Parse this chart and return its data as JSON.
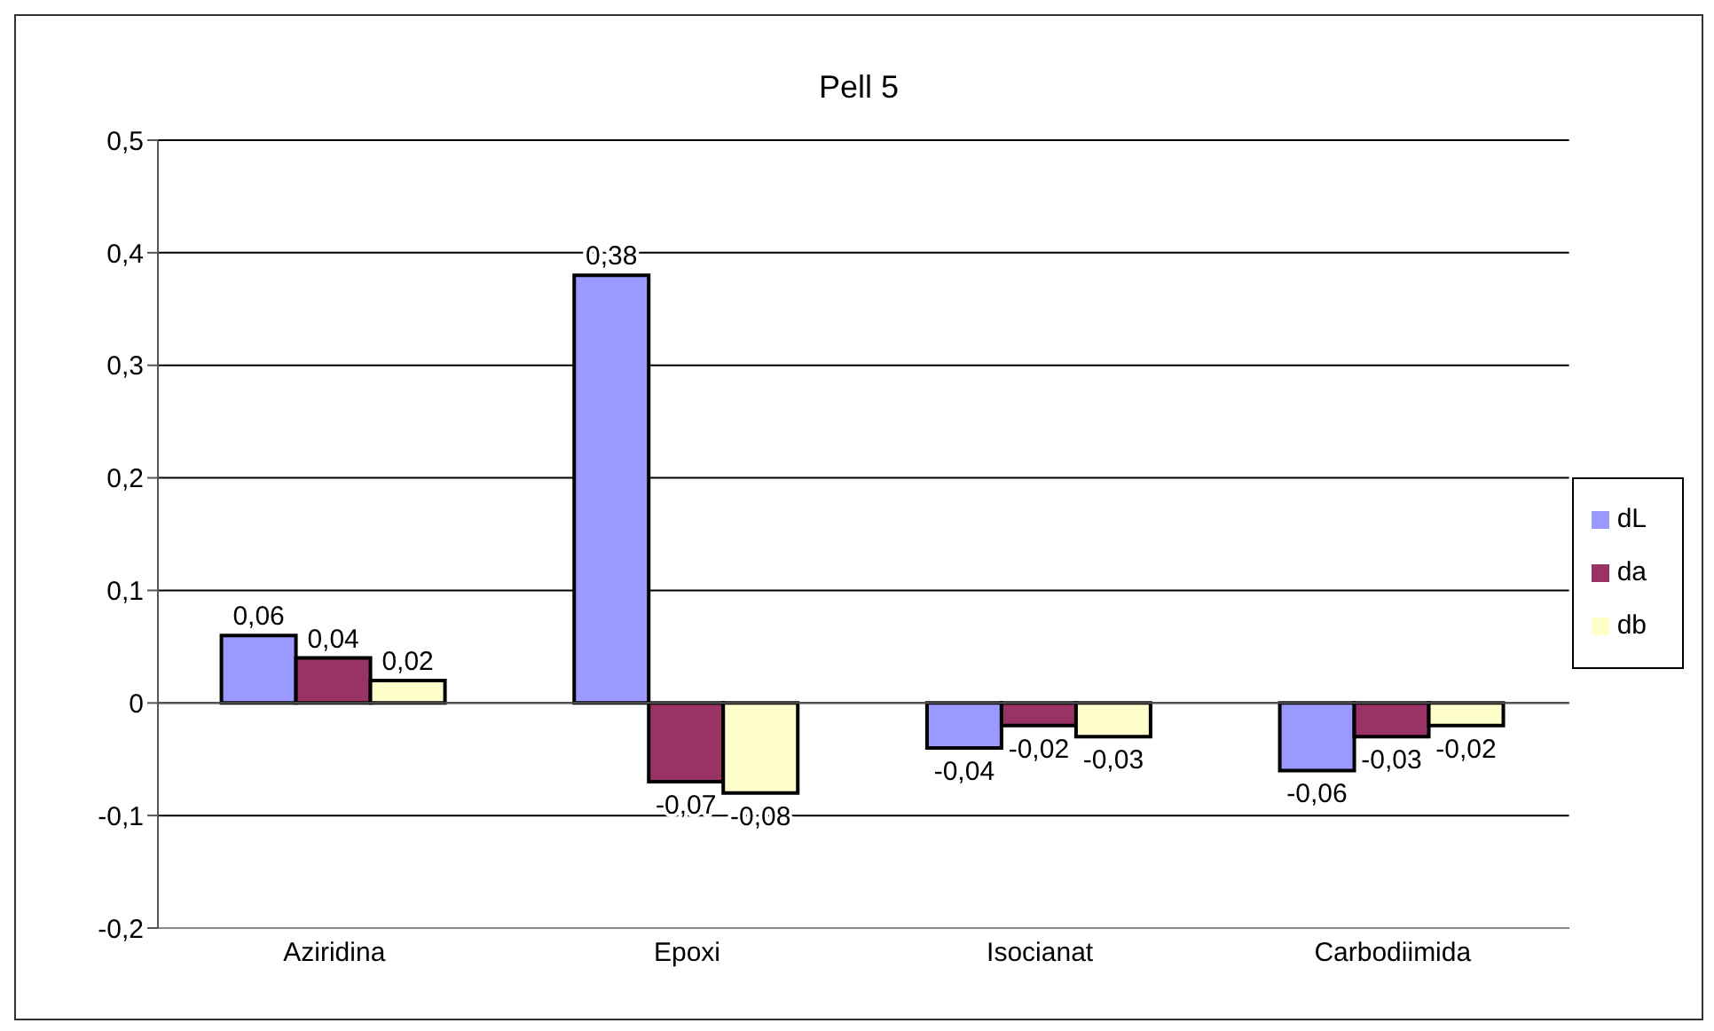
{
  "chart_data": {
    "type": "bar",
    "title": "Pell 5",
    "categories": [
      "Aziridina",
      "Epoxi",
      "Isocianat",
      "Carbodiimida"
    ],
    "series": [
      {
        "name": "dL",
        "color": "#9999ff",
        "values": [
          0.06,
          0.38,
          -0.04,
          -0.06
        ],
        "value_labels": [
          "0,06",
          "0,38",
          "-0,04",
          "-0,06"
        ]
      },
      {
        "name": "da",
        "color": "#993366",
        "values": [
          0.04,
          -0.07,
          -0.02,
          -0.03
        ],
        "value_labels": [
          "0,04",
          "-0,07",
          "-0,02",
          "-0,03"
        ]
      },
      {
        "name": "db",
        "color": "#ffffcc",
        "values": [
          0.02,
          -0.08,
          -0.03,
          -0.02
        ],
        "value_labels": [
          "0,02",
          "-0,08",
          "-0,03",
          "-0,02"
        ]
      }
    ],
    "ylim": [
      -0.2,
      0.5
    ],
    "yticks": [
      {
        "value": -0.2,
        "label": "-0,2"
      },
      {
        "value": -0.1,
        "label": "-0,1"
      },
      {
        "value": 0,
        "label": "0"
      },
      {
        "value": 0.1,
        "label": "0,1"
      },
      {
        "value": 0.2,
        "label": "0,2"
      },
      {
        "value": 0.3,
        "label": "0,3"
      },
      {
        "value": 0.4,
        "label": "0,4"
      },
      {
        "value": 0.5,
        "label": "0,5"
      }
    ],
    "grid": "y",
    "legend": "right"
  }
}
